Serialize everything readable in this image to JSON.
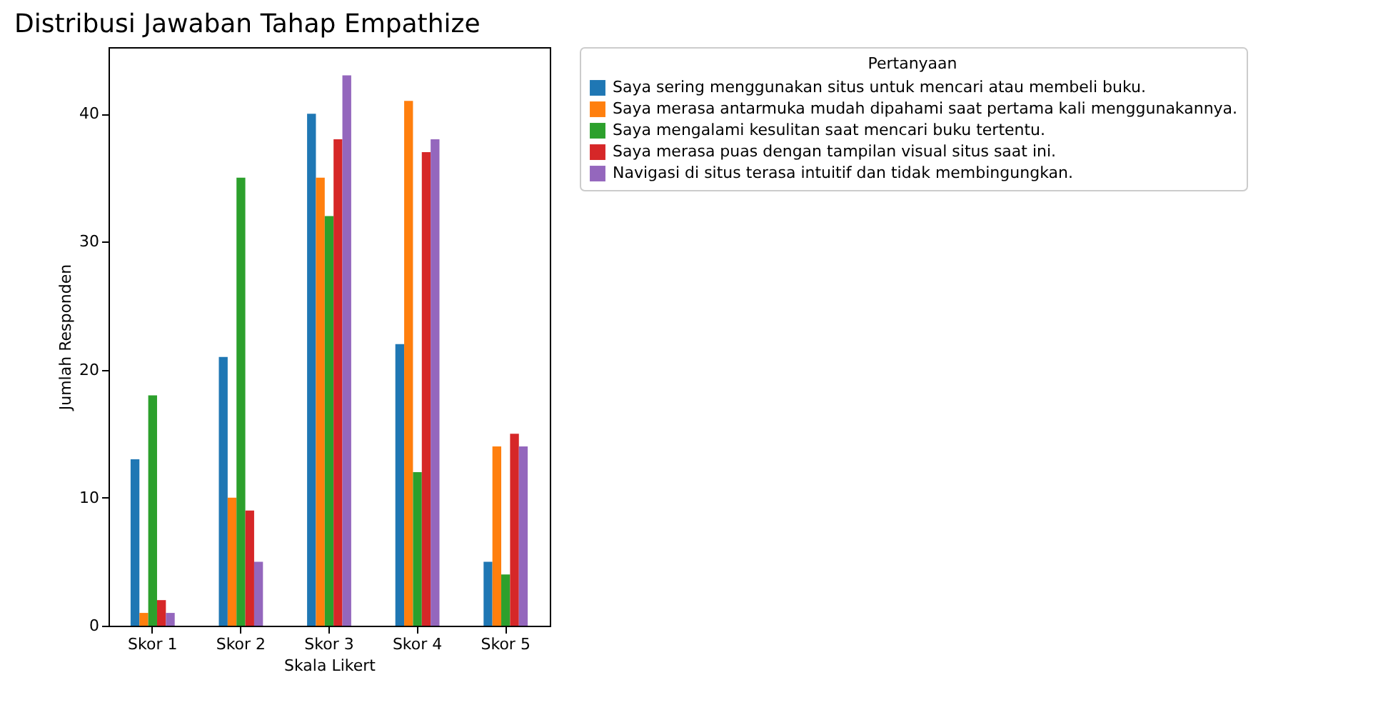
{
  "chart_data": {
    "type": "bar",
    "title": "Distribusi Jawaban Tahap Empathize",
    "xlabel": "Skala Likert",
    "ylabel": "Jumlah Responden",
    "legend_title": "Pertanyaan",
    "categories": [
      "Skor 1",
      "Skor 2",
      "Skor 3",
      "Skor 4",
      "Skor 5"
    ],
    "series": [
      {
        "name": "Saya sering menggunakan situs untuk mencari atau membeli buku.",
        "color": "#1f77b4",
        "values": [
          13,
          21,
          40,
          22,
          5
        ]
      },
      {
        "name": "Saya merasa antarmuka mudah dipahami saat pertama kali menggunakannya.",
        "color": "#ff7f0e",
        "values": [
          1,
          10,
          35,
          41,
          14
        ]
      },
      {
        "name": "Saya mengalami kesulitan saat mencari buku tertentu.",
        "color": "#2ca02c",
        "values": [
          18,
          35,
          32,
          12,
          4
        ]
      },
      {
        "name": "Saya merasa puas dengan tampilan visual situs saat ini.",
        "color": "#d62728",
        "values": [
          2,
          9,
          38,
          37,
          15
        ]
      },
      {
        "name": "Navigasi di situs terasa intuitif dan tidak membingungkan.",
        "color": "#9467bd",
        "values": [
          1,
          5,
          43,
          38,
          14
        ]
      }
    ],
    "ylim": [
      0,
      45.2
    ],
    "yticks": [
      0,
      10,
      20,
      30,
      40
    ],
    "grid": false,
    "legend": "top right"
  }
}
